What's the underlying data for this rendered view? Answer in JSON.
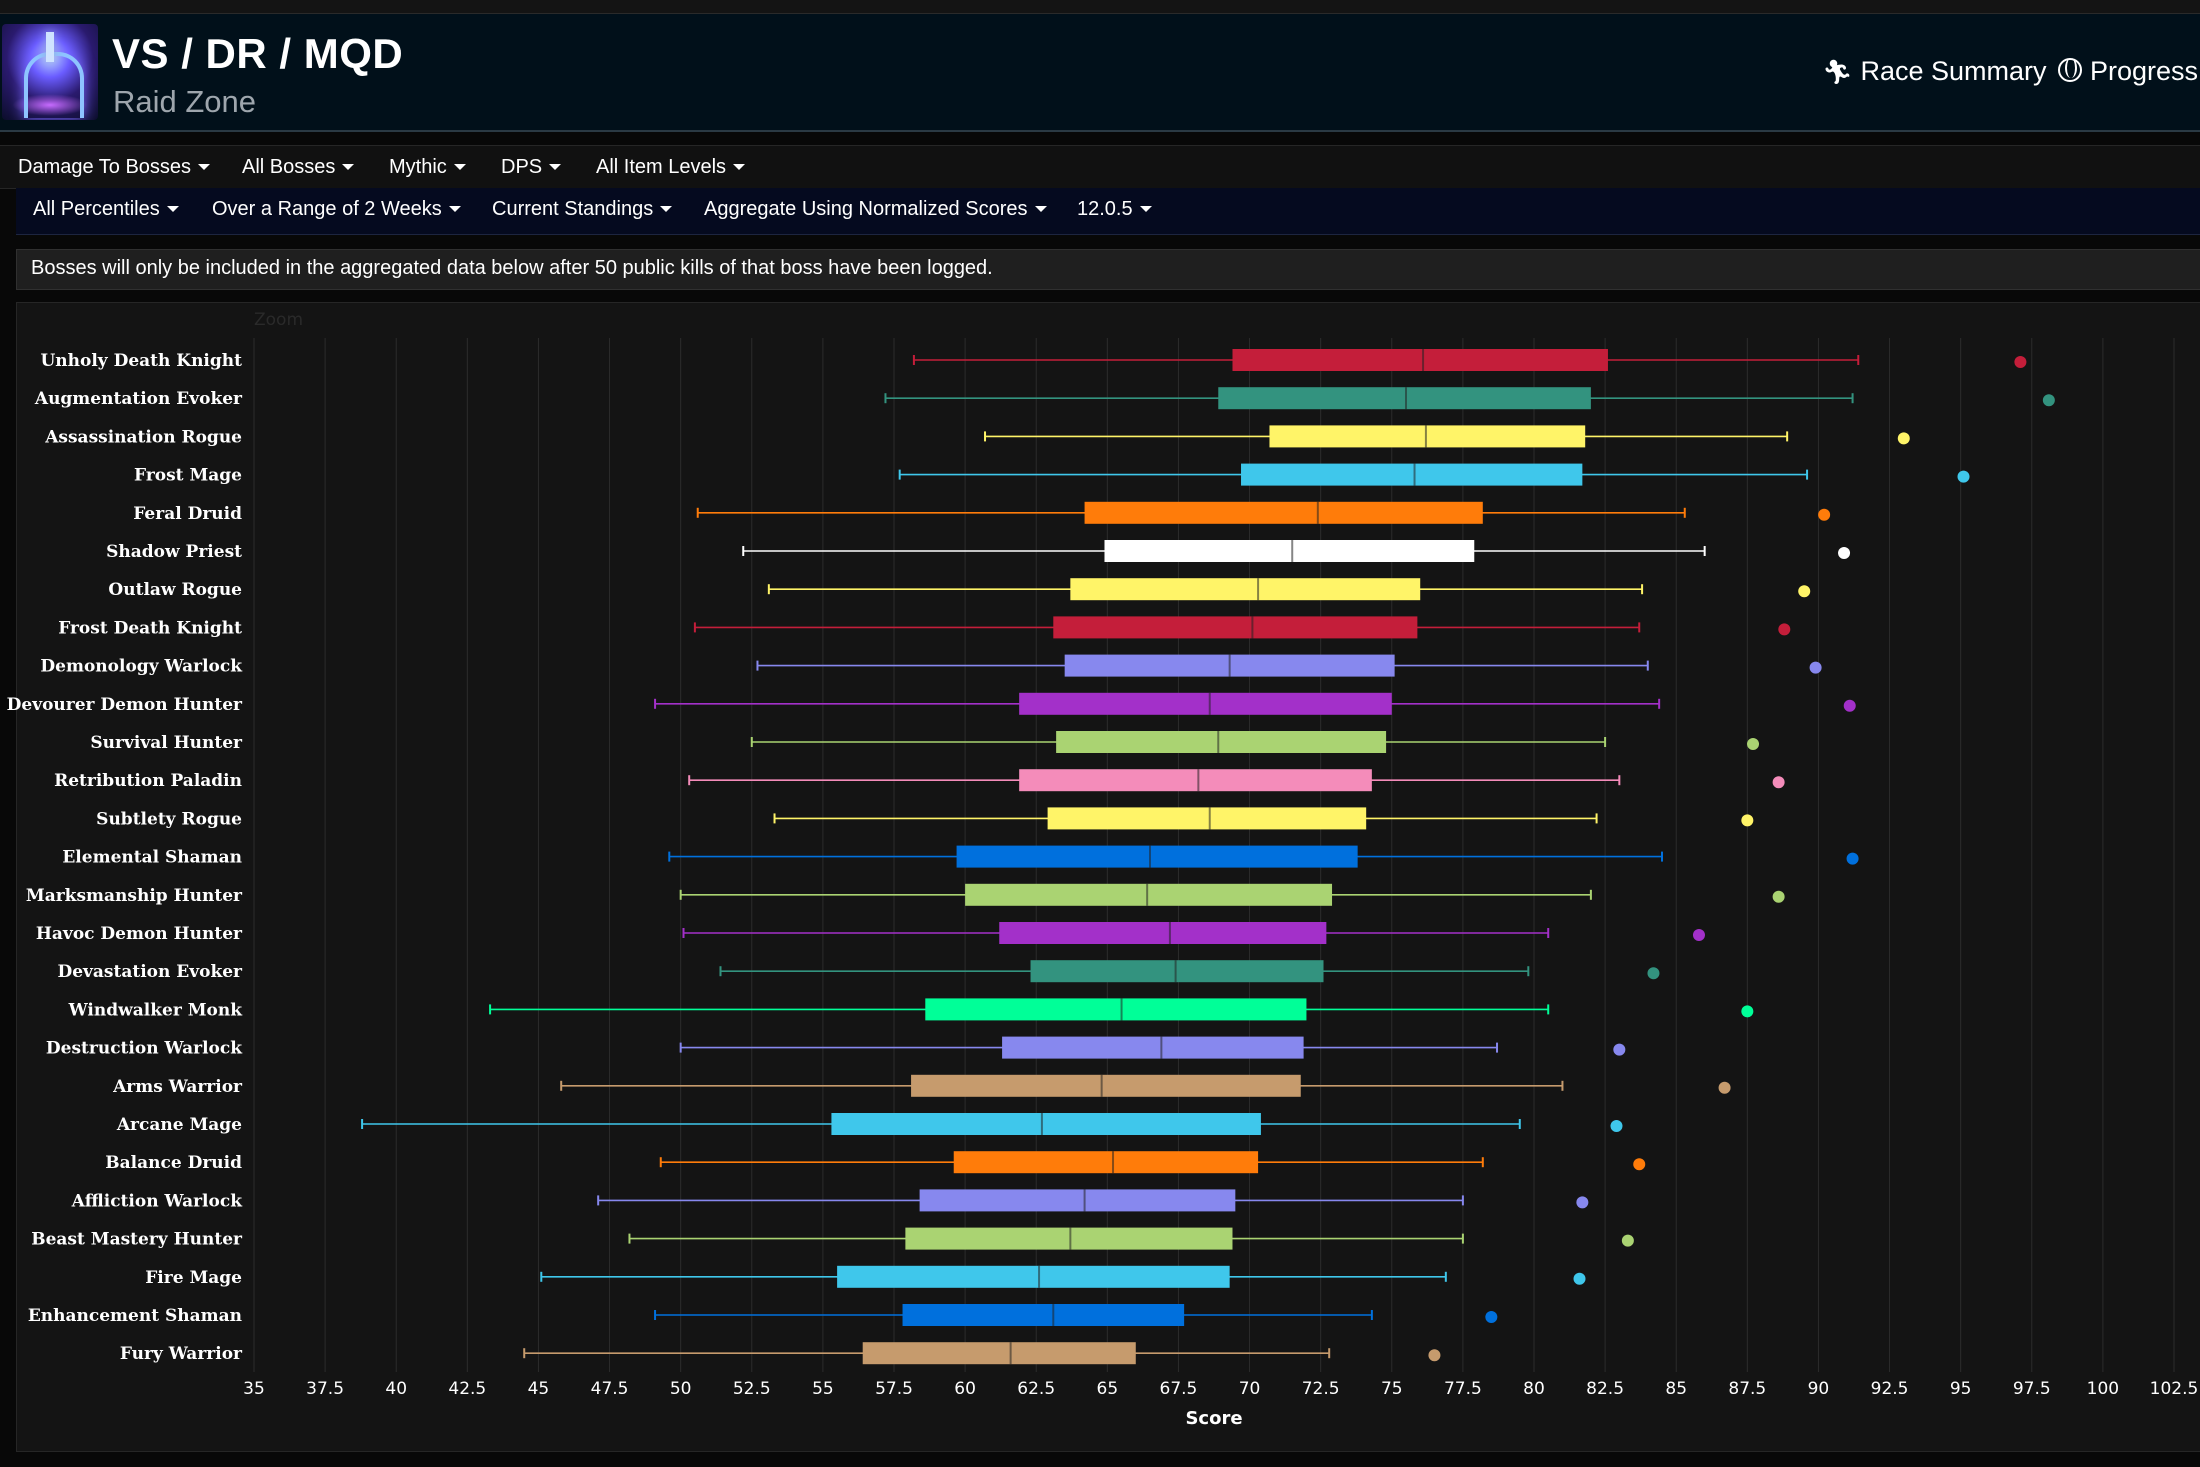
{
  "header": {
    "title": "VS / DR / MQD",
    "subtitle": "Raid Zone",
    "links": [
      {
        "label": "Race Summary",
        "icon": "running-figure-icon"
      },
      {
        "label": "Progress",
        "icon": "globe-icon"
      }
    ]
  },
  "filters_row1": [
    {
      "label": "Damage To Bosses"
    },
    {
      "label": "All Bosses"
    },
    {
      "label": "Mythic"
    },
    {
      "label": "DPS"
    },
    {
      "label": "All Item Levels"
    }
  ],
  "filters_row2": [
    {
      "label": "All Percentiles"
    },
    {
      "label": "Over a Range of 2 Weeks"
    },
    {
      "label": "Current Standings"
    },
    {
      "label": "Aggregate Using Normalized Scores"
    },
    {
      "label": "12.0.5"
    }
  ],
  "notice": "Bosses will only be included in the aggregated data below after 50 public kills of that boss have been logged.",
  "chart_data": {
    "type": "boxplot",
    "zoom_label": "Zoom",
    "xlabel": "Score",
    "xlim": [
      35,
      102.5
    ],
    "xticks": [
      "35",
      "37.5",
      "40",
      "42.5",
      "45",
      "47.5",
      "50",
      "52.5",
      "55",
      "57.5",
      "60",
      "62.5",
      "65",
      "67.5",
      "70",
      "72.5",
      "75",
      "77.5",
      "80",
      "82.5",
      "85",
      "87.5",
      "90",
      "92.5",
      "95",
      "97.5",
      "100",
      "102.5"
    ],
    "grid": true,
    "series": [
      {
        "name": "Unholy Death Knight",
        "color": "#c41e3a",
        "min": 58.2,
        "q1": 69.4,
        "median": 76.1,
        "q3": 82.6,
        "max": 91.4,
        "outlier": 97.1
      },
      {
        "name": "Augmentation Evoker",
        "color": "#33937f",
        "min": 57.2,
        "q1": 68.9,
        "median": 75.5,
        "q3": 82.0,
        "max": 91.2,
        "outlier": 98.1
      },
      {
        "name": "Assassination Rogue",
        "color": "#fff468",
        "min": 60.7,
        "q1": 70.7,
        "median": 76.2,
        "q3": 81.8,
        "max": 88.9,
        "outlier": 93.0
      },
      {
        "name": "Frost Mage",
        "color": "#3fc7eb",
        "min": 57.7,
        "q1": 69.7,
        "median": 75.8,
        "q3": 81.7,
        "max": 89.6,
        "outlier": 95.1
      },
      {
        "name": "Feral Druid",
        "color": "#ff7c0a",
        "min": 50.6,
        "q1": 64.2,
        "median": 72.4,
        "q3": 78.2,
        "max": 85.3,
        "outlier": 90.2
      },
      {
        "name": "Shadow Priest",
        "color": "#ffffff",
        "min": 52.2,
        "q1": 64.9,
        "median": 71.5,
        "q3": 77.9,
        "max": 86.0,
        "outlier": 90.9
      },
      {
        "name": "Outlaw Rogue",
        "color": "#fff468",
        "min": 53.1,
        "q1": 63.7,
        "median": 70.3,
        "q3": 76.0,
        "max": 83.8,
        "outlier": 89.5
      },
      {
        "name": "Frost Death Knight",
        "color": "#c41e3a",
        "min": 50.5,
        "q1": 63.1,
        "median": 70.1,
        "q3": 75.9,
        "max": 83.7,
        "outlier": 88.8
      },
      {
        "name": "Demonology Warlock",
        "color": "#8788ee",
        "min": 52.7,
        "q1": 63.5,
        "median": 69.3,
        "q3": 75.1,
        "max": 84.0,
        "outlier": 89.9
      },
      {
        "name": "Devourer Demon Hunter",
        "color": "#a330c9",
        "min": 49.1,
        "q1": 61.9,
        "median": 68.6,
        "q3": 75.0,
        "max": 84.4,
        "outlier": 91.1
      },
      {
        "name": "Survival Hunter",
        "color": "#aad372",
        "min": 52.5,
        "q1": 63.2,
        "median": 68.9,
        "q3": 74.8,
        "max": 82.5,
        "outlier": 87.7
      },
      {
        "name": "Retribution Paladin",
        "color": "#f48cba",
        "min": 50.3,
        "q1": 61.9,
        "median": 68.2,
        "q3": 74.3,
        "max": 83.0,
        "outlier": 88.6
      },
      {
        "name": "Subtlety Rogue",
        "color": "#fff468",
        "min": 53.3,
        "q1": 62.9,
        "median": 68.6,
        "q3": 74.1,
        "max": 82.2,
        "outlier": 87.5
      },
      {
        "name": "Elemental Shaman",
        "color": "#0070dd",
        "min": 49.6,
        "q1": 59.7,
        "median": 66.5,
        "q3": 73.8,
        "max": 84.5,
        "outlier": 91.2
      },
      {
        "name": "Marksmanship Hunter",
        "color": "#aad372",
        "min": 50.0,
        "q1": 60.0,
        "median": 66.4,
        "q3": 72.9,
        "max": 82.0,
        "outlier": 88.6
      },
      {
        "name": "Havoc Demon Hunter",
        "color": "#a330c9",
        "min": 50.1,
        "q1": 61.2,
        "median": 67.2,
        "q3": 72.7,
        "max": 80.5,
        "outlier": 85.8
      },
      {
        "name": "Devastation Evoker",
        "color": "#33937f",
        "min": 51.4,
        "q1": 62.3,
        "median": 67.4,
        "q3": 72.6,
        "max": 79.8,
        "outlier": 84.2
      },
      {
        "name": "Windwalker Monk",
        "color": "#00ff98",
        "min": 43.3,
        "q1": 58.6,
        "median": 65.5,
        "q3": 72.0,
        "max": 80.5,
        "outlier": 87.5
      },
      {
        "name": "Destruction Warlock",
        "color": "#8788ee",
        "min": 50.0,
        "q1": 61.3,
        "median": 66.9,
        "q3": 71.9,
        "max": 78.7,
        "outlier": 83.0
      },
      {
        "name": "Arms Warrior",
        "color": "#c69b6d",
        "min": 45.8,
        "q1": 58.1,
        "median": 64.8,
        "q3": 71.8,
        "max": 81.0,
        "outlier": 86.7
      },
      {
        "name": "Arcane Mage",
        "color": "#3fc7eb",
        "min": 38.8,
        "q1": 55.3,
        "median": 62.7,
        "q3": 70.4,
        "max": 79.5,
        "outlier": 82.9
      },
      {
        "name": "Balance Druid",
        "color": "#ff7c0a",
        "min": 49.3,
        "q1": 59.6,
        "median": 65.2,
        "q3": 70.3,
        "max": 78.2,
        "outlier": 83.7
      },
      {
        "name": "Affliction Warlock",
        "color": "#8788ee",
        "min": 47.1,
        "q1": 58.4,
        "median": 64.2,
        "q3": 69.5,
        "max": 77.5,
        "outlier": 81.7
      },
      {
        "name": "Beast Mastery Hunter",
        "color": "#aad372",
        "min": 48.2,
        "q1": 57.9,
        "median": 63.7,
        "q3": 69.4,
        "max": 77.5,
        "outlier": 83.3
      },
      {
        "name": "Fire Mage",
        "color": "#3fc7eb",
        "min": 45.1,
        "q1": 55.5,
        "median": 62.6,
        "q3": 69.3,
        "max": 76.9,
        "outlier": 81.6
      },
      {
        "name": "Enhancement Shaman",
        "color": "#0070dd",
        "min": 49.1,
        "q1": 57.8,
        "median": 63.1,
        "q3": 67.7,
        "max": 74.3,
        "outlier": 78.5
      },
      {
        "name": "Fury Warrior",
        "color": "#c69b6d",
        "min": 44.5,
        "q1": 56.4,
        "median": 61.6,
        "q3": 66.0,
        "max": 72.8,
        "outlier": 76.5
      }
    ]
  }
}
